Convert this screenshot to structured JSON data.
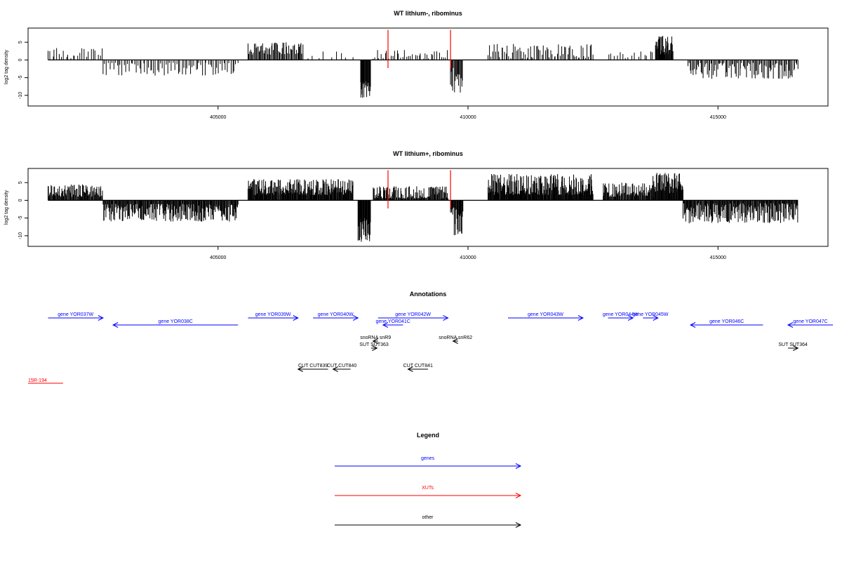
{
  "chart_data": [
    {
      "type": "bar",
      "title": "WT lithium-, ribominus",
      "ylabel": "log2 tag density",
      "ylim": [
        -13,
        9
      ],
      "xlim": [
        401200,
        417200
      ],
      "yticks": [
        5,
        0,
        -5,
        -10
      ],
      "xticks": [
        405000,
        410000,
        415000
      ],
      "marker_color": "#ff0000",
      "markers": [
        408400,
        409650
      ],
      "segments": [
        {
          "x0": 401600,
          "x1": 402700,
          "sign": 1,
          "min": 0.5,
          "max": 3.5,
          "step": 45
        },
        {
          "x0": 402700,
          "x1": 405400,
          "sign": -1,
          "min": 0.8,
          "max": 4.5,
          "step": 35
        },
        {
          "x0": 405600,
          "x1": 406700,
          "sign": 1,
          "min": 1.5,
          "max": 5,
          "step": 18
        },
        {
          "x0": 406800,
          "x1": 407700,
          "sign": 1,
          "min": 0.3,
          "max": 2.5,
          "step": 110
        },
        {
          "x0": 407850,
          "x1": 408050,
          "sign": -1,
          "min": 6,
          "max": 11,
          "step": 10
        },
        {
          "x0": 408100,
          "x1": 409600,
          "sign": 1,
          "min": 0.3,
          "max": 3,
          "step": 40
        },
        {
          "x0": 409650,
          "x1": 409900,
          "sign": -1,
          "min": 2,
          "max": 9.5,
          "step": 15
        },
        {
          "x0": 410400,
          "x1": 412500,
          "sign": 1,
          "min": 0.5,
          "max": 4.5,
          "step": 30
        },
        {
          "x0": 412800,
          "x1": 413700,
          "sign": 1,
          "min": 0.3,
          "max": 2.5,
          "step": 60
        },
        {
          "x0": 413750,
          "x1": 414100,
          "sign": 1,
          "min": 1.5,
          "max": 7,
          "step": 10
        },
        {
          "x0": 414400,
          "x1": 416600,
          "sign": -1,
          "min": 0.8,
          "max": 5.5,
          "step": 22
        }
      ]
    },
    {
      "type": "bar",
      "title": "WT lithium+, ribominus",
      "ylabel": "log2 tag density",
      "ylim": [
        -13,
        9
      ],
      "xlim": [
        401200,
        417200
      ],
      "yticks": [
        5,
        0,
        -5,
        -10
      ],
      "xticks": [
        405000,
        410000,
        415000
      ],
      "marker_color": "#ff0000",
      "markers": [
        408400,
        409650
      ],
      "segments": [
        {
          "x0": 401600,
          "x1": 402700,
          "sign": 1,
          "min": 1,
          "max": 4.5,
          "step": 12
        },
        {
          "x0": 402700,
          "x1": 405400,
          "sign": -1,
          "min": 1,
          "max": 6,
          "step": 12
        },
        {
          "x0": 405600,
          "x1": 407700,
          "sign": 1,
          "min": 1.5,
          "max": 6,
          "step": 10
        },
        {
          "x0": 407800,
          "x1": 408050,
          "sign": -1,
          "min": 5,
          "max": 12,
          "step": 8
        },
        {
          "x0": 408100,
          "x1": 409600,
          "sign": 1,
          "min": 0.5,
          "max": 4,
          "step": 12
        },
        {
          "x0": 409650,
          "x1": 409900,
          "sign": -1,
          "min": 2,
          "max": 10,
          "step": 10
        },
        {
          "x0": 410400,
          "x1": 412500,
          "sign": 1,
          "min": 1.5,
          "max": 7.5,
          "step": 10
        },
        {
          "x0": 412700,
          "x1": 413700,
          "sign": 1,
          "min": 1,
          "max": 5,
          "step": 12
        },
        {
          "x0": 413700,
          "x1": 414300,
          "sign": 1,
          "min": 2,
          "max": 8,
          "step": 10
        },
        {
          "x0": 414300,
          "x1": 416600,
          "sign": -1,
          "min": 0.8,
          "max": 6.5,
          "step": 12
        }
      ]
    }
  ],
  "annotations": {
    "title": "Annotations",
    "features": [
      {
        "label": "gene YOR037W",
        "x0": 401600,
        "x1": 402700,
        "strand": "+",
        "row": 0,
        "color": "#0000ff"
      },
      {
        "label": "gene YOR038C",
        "x0": 402900,
        "x1": 405400,
        "strand": "-",
        "row": 1,
        "color": "#0000ff"
      },
      {
        "label": "gene YOR039W",
        "x0": 405600,
        "x1": 406600,
        "strand": "+",
        "row": 0,
        "color": "#0000ff"
      },
      {
        "label": "gene YOR040W",
        "x0": 406900,
        "x1": 407800,
        "strand": "+",
        "row": 0,
        "color": "#0000ff"
      },
      {
        "label": "gene YOR042W",
        "x0": 408200,
        "x1": 409600,
        "strand": "+",
        "row": 0,
        "color": "#0000ff"
      },
      {
        "label": "gene YOR041C",
        "x0": 408300,
        "x1": 408700,
        "strand": "-",
        "row": 1,
        "color": "#0000ff"
      },
      {
        "label": "gene YOR043W",
        "x0": 410800,
        "x1": 412300,
        "strand": "+",
        "row": 0,
        "color": "#0000ff"
      },
      {
        "label": "gene YOR044W",
        "x0": 412800,
        "x1": 413300,
        "strand": "+",
        "row": 0,
        "color": "#0000ff"
      },
      {
        "label": "gene YOR045W",
        "x0": 413500,
        "x1": 413800,
        "strand": "+",
        "row": 0,
        "color": "#0000ff"
      },
      {
        "label": "gene YOR046C",
        "x0": 414450,
        "x1": 415900,
        "strand": "-",
        "row": 1,
        "color": "#0000ff"
      },
      {
        "label": "gene YOR047C",
        "x0": 416400,
        "x1": 417300,
        "strand": "-",
        "row": 1,
        "color": "#0000ff"
      },
      {
        "label": "snoRNA snR9",
        "x0": 408100,
        "x1": 408200,
        "strand": "-",
        "row": 2,
        "color": "#000000"
      },
      {
        "label": "SUT SUT363",
        "x0": 408060,
        "x1": 408180,
        "strand": "+",
        "row": 3,
        "color": "#000000"
      },
      {
        "label": "snoRNA snR62",
        "x0": 409700,
        "x1": 409800,
        "strand": "-",
        "row": 2,
        "color": "#000000"
      },
      {
        "label": "SUT SUT364",
        "x0": 416400,
        "x1": 416600,
        "strand": "+",
        "row": 3,
        "color": "#000000"
      },
      {
        "label": "CUT CUT839",
        "x0": 406600,
        "x1": 407200,
        "strand": "-",
        "row": 4,
        "color": "#000000"
      },
      {
        "label": "CUT CUT840",
        "x0": 407300,
        "x1": 407650,
        "strand": "-",
        "row": 4,
        "color": "#000000"
      },
      {
        "label": "CUT CUT841",
        "x0": 408800,
        "x1": 409200,
        "strand": "-",
        "row": 4,
        "color": "#000000"
      },
      {
        "label": "15R-194",
        "x0": 401200,
        "x1": 401900,
        "strand": "",
        "row": 5,
        "color": "#ff0000"
      }
    ]
  },
  "legend": {
    "title": "Legend",
    "items": [
      {
        "label": "genes",
        "color": "#0000ff"
      },
      {
        "label": "XUTs",
        "color": "#ff0000"
      },
      {
        "label": "other",
        "color": "#000000"
      }
    ]
  }
}
